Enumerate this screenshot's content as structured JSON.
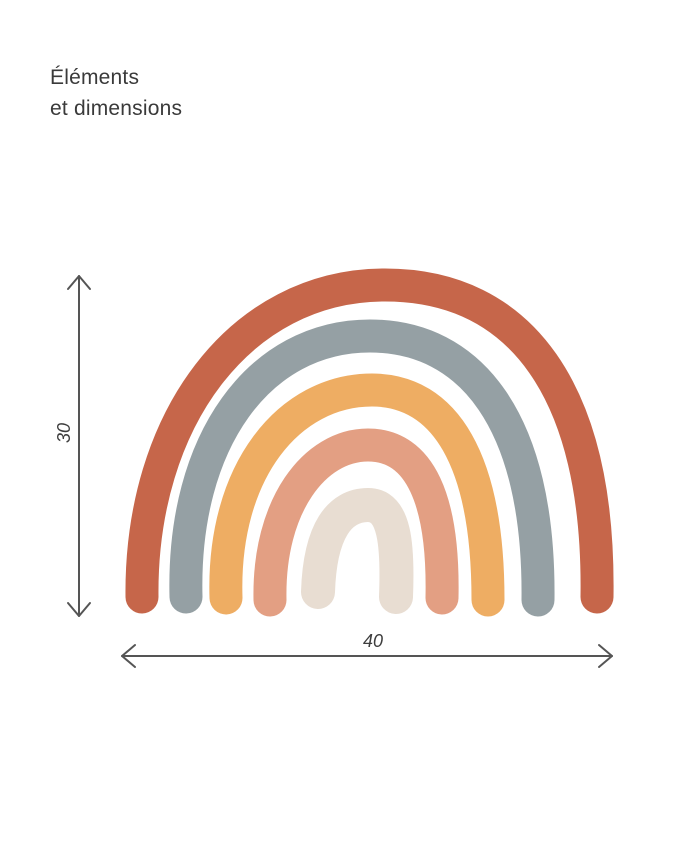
{
  "heading": {
    "line1": "Éléments",
    "line2": "et dimensions"
  },
  "dimensions": {
    "height": "30",
    "width": "40"
  },
  "colors": {
    "outer": "#c6664a",
    "second": "#95a0a4",
    "third": "#eead63",
    "fourth": "#e39f83",
    "inner": "#e8ddd2",
    "arrow": "#555555"
  }
}
